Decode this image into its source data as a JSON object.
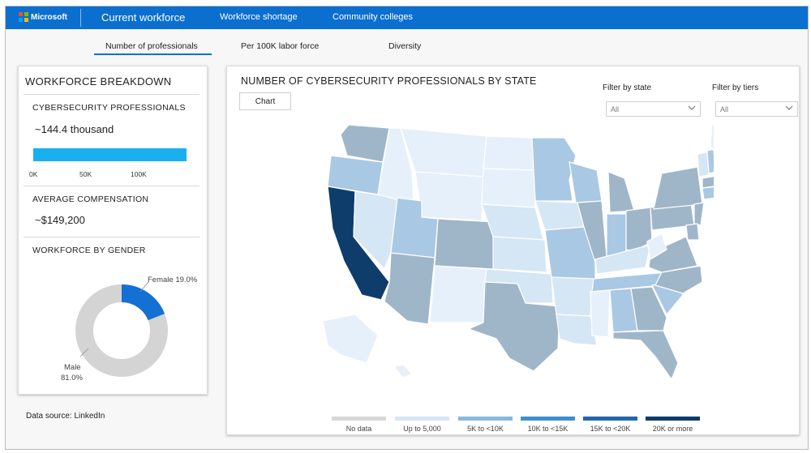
{
  "header": {
    "logo_text": "Microsoft",
    "nav": [
      "Current workforce",
      "Workforce shortage",
      "Community colleges"
    ],
    "active_nav": "Current workforce"
  },
  "subnav": {
    "tabs": [
      "Number of professionals",
      "Per 100K labor force",
      "Diversity"
    ],
    "active_tab": "Number of professionals"
  },
  "breakdown": {
    "title": "WORKFORCE BREAKDOWN",
    "professionals_title": "CYBERSECURITY PROFESSIONALS",
    "professionals_value": "~144.4 thousand",
    "professionals_number": 144400,
    "bar_ticks": [
      "0K",
      "50K",
      "100K"
    ],
    "compensation_title": "AVERAGE COMPENSATION",
    "compensation_value": "~$149,200",
    "gender_title": "WORKFORCE BY GENDER",
    "gender": {
      "female_label": "Female 19.0%",
      "male_label": "Male",
      "male_pct_label": "81.0%",
      "female_pct": 19.0,
      "male_pct": 81.0
    }
  },
  "data_source": "Data source: LinkedIn",
  "map": {
    "title": "NUMBER OF CYBERSECURITY PROFESSIONALS BY STATE",
    "chart_button": "Chart",
    "filter_state_label": "Filter by state",
    "filter_state_value": "All",
    "filter_tiers_label": "Filter by tiers",
    "filter_tiers_value": "All",
    "legend": [
      {
        "label": "No data",
        "color": "#d8d8d8"
      },
      {
        "label": "Up to 5,000",
        "color": "#d5e6f5"
      },
      {
        "label": "5K to <10K",
        "color": "#8ab8de"
      },
      {
        "label": "10K to <15K",
        "color": "#3d8fd1"
      },
      {
        "label": "15K to <20K",
        "color": "#2366ad"
      },
      {
        "label": "20K or more",
        "color": "#0e3c6b"
      }
    ]
  },
  "colors": {
    "brand_blue": "#0b6fd0",
    "bar_blue": "#1ab0ee",
    "map_tier_light": "#e6f0fa",
    "map_tier_mid": "#a9c8e4",
    "map_tier_gray": "#9fb6c9",
    "map_tier_dark": "#0e3c6b"
  }
}
